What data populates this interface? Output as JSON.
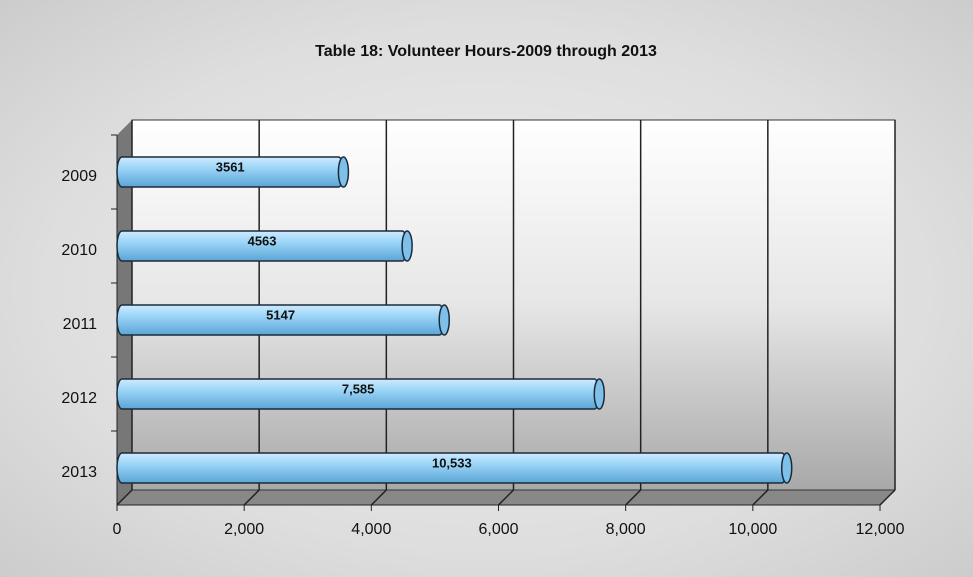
{
  "chart_data": {
    "type": "bar",
    "orientation": "horizontal",
    "title": "Table 18: Volunteer Hours-2009 through 2013",
    "categories": [
      "2009",
      "2010",
      "2011",
      "2012",
      "2013"
    ],
    "values": [
      3561,
      4563,
      5147,
      7585,
      10533
    ],
    "value_labels": [
      "3561",
      "4563",
      "5147",
      "7,585",
      "10,533"
    ],
    "color": "#8fcff5",
    "xlim": [
      0,
      12000
    ],
    "xticks": [
      0,
      {
        "value": 2000,
        "label": "2,000"
      },
      {
        "value": 4000,
        "label": "4,000"
      },
      {
        "value": 6000,
        "label": "6,000"
      },
      {
        "value": 8000,
        "label": "8,000"
      },
      {
        "value": 10000,
        "label": "10,000"
      },
      {
        "value": 12000,
        "label": "12,000"
      }
    ],
    "grid": true
  }
}
